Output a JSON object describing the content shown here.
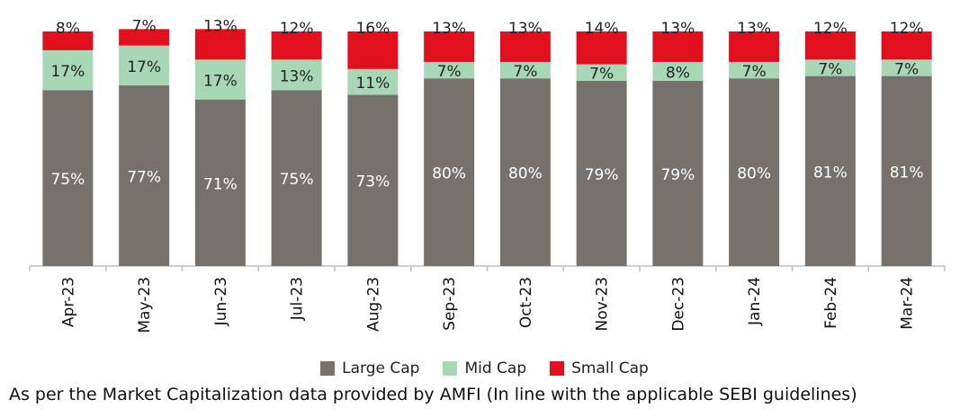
{
  "chart_data": {
    "type": "bar",
    "stacked": true,
    "normalized": true,
    "categories": [
      "Apr-23",
      "May-23",
      "Jun-23",
      "Jul-23",
      "Aug-23",
      "Sep-23",
      "Oct-23",
      "Nov-23",
      "Dec-23",
      "Jan-24",
      "Feb-24",
      "Mar-24"
    ],
    "series": [
      {
        "name": "Large Cap",
        "color": "#77716e",
        "values": [
          75,
          77,
          71,
          75,
          73,
          80,
          80,
          79,
          79,
          80,
          81,
          81
        ],
        "labels": [
          "75%",
          "77%",
          "71%",
          "75%",
          "73%",
          "80%",
          "80%",
          "79%",
          "79%",
          "80%",
          "81%",
          "81%"
        ]
      },
      {
        "name": "Mid Cap",
        "color": "#a7d7b5",
        "values": [
          17,
          17,
          17,
          13,
          11,
          7,
          7,
          7,
          8,
          7,
          7,
          7
        ],
        "labels": [
          "17%",
          "17%",
          "17%",
          "13%",
          "11%",
          "7%",
          "7%",
          "7%",
          "8%",
          "7%",
          "7%",
          "7%"
        ]
      },
      {
        "name": "Small Cap",
        "color": "#e0101e",
        "values": [
          8,
          7,
          13,
          12,
          16,
          13,
          13,
          14,
          13,
          13,
          12,
          12
        ],
        "labels": [
          "8%",
          "7%",
          "13%",
          "12%",
          "16%",
          "13%",
          "13%",
          "14%",
          "13%",
          "13%",
          "12%",
          "12%"
        ]
      }
    ],
    "legend_position": "bottom-center",
    "grid": false
  },
  "footnote": "As per the Market Capitalization data provided by AMFI (In line with the applicable SEBI guidelines)"
}
